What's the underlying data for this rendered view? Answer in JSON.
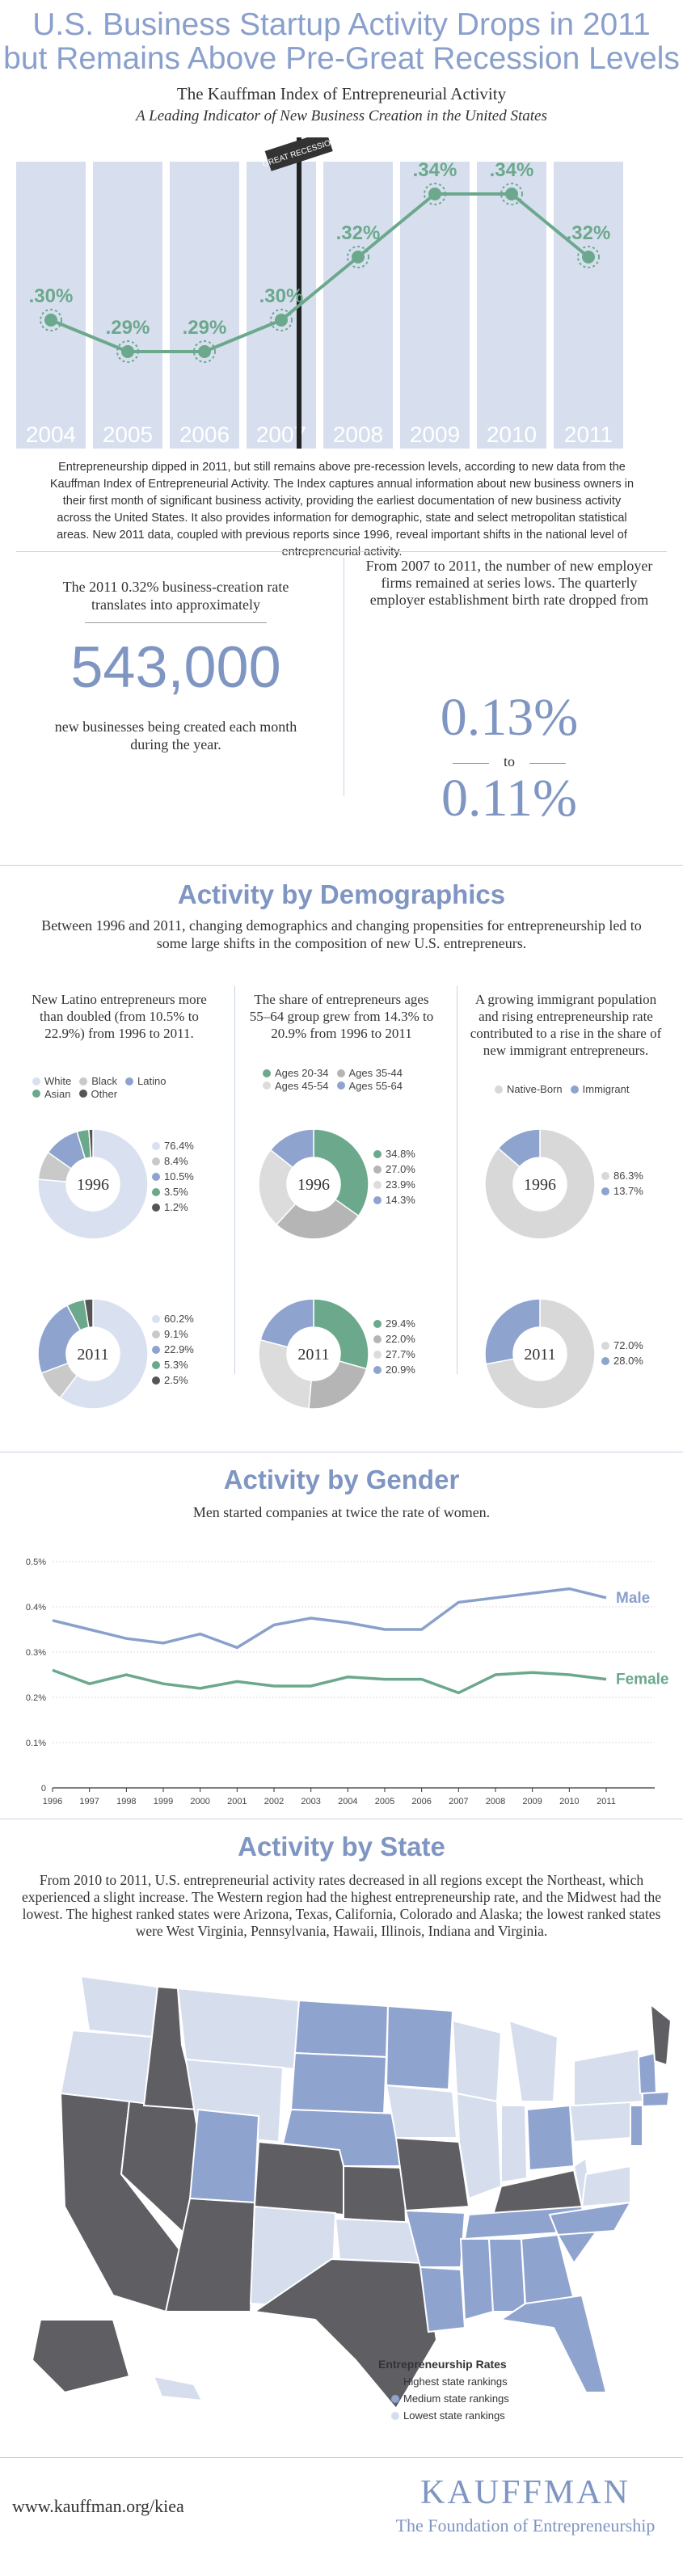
{
  "header": {
    "title_line1": "U.S. Business Startup Activity Drops in 2011",
    "title_line2": "but Remains Above Pre-Great Recession Levels",
    "index_name": "The Kauffman Index of Entrepreneurial Activity",
    "index_subtitle": "A Leading Indicator of New Business Creation in the United States",
    "recession_sign": "GREAT RECESSION"
  },
  "chart_data": [
    {
      "type": "line",
      "title": "",
      "categories": [
        "2004",
        "2005",
        "2006",
        "2007",
        "2008",
        "2009",
        "2010",
        "2011"
      ],
      "series": [
        {
          "values": [
            0.3,
            0.29,
            0.29,
            0.3,
            0.32,
            0.34,
            0.34,
            0.32
          ]
        }
      ],
      "point_labels": [
        ".30%",
        ".29%",
        ".29%",
        ".30%",
        ".32%",
        ".34%",
        ".34%",
        ".32%"
      ],
      "annotation": "GREAT RECESSION",
      "colors": {
        "bars": "#d7dfee",
        "line": "#6ba88c"
      }
    },
    {
      "type": "pie",
      "title": "1996",
      "categories": [
        "White",
        "Black",
        "Latino",
        "Asian",
        "Other"
      ],
      "values": [
        76.4,
        8.4,
        10.5,
        3.5,
        1.2
      ],
      "labels": [
        "76.4%",
        "8.4%",
        "10.5%",
        "3.5%",
        "1.2%"
      ]
    },
    {
      "type": "pie",
      "title": "2011",
      "categories": [
        "White",
        "Black",
        "Latino",
        "Asian",
        "Other"
      ],
      "values": [
        60.2,
        9.1,
        22.9,
        5.3,
        2.5
      ],
      "labels": [
        "60.2%",
        "9.1%",
        "22.9%",
        "5.3%",
        "2.5%"
      ]
    },
    {
      "type": "pie",
      "title": "1996",
      "categories": [
        "Ages 20-34",
        "Ages 35-44",
        "Ages 45-54",
        "Ages 55-64"
      ],
      "values": [
        34.8,
        27.0,
        23.9,
        14.3
      ],
      "labels": [
        "34.8%",
        "27.0%",
        "23.9%",
        "14.3%"
      ]
    },
    {
      "type": "pie",
      "title": "2011",
      "categories": [
        "Ages 20-34",
        "Ages 35-44",
        "Ages 45-54",
        "Ages 55-64"
      ],
      "values": [
        29.4,
        22.0,
        27.7,
        20.9
      ],
      "labels": [
        "29.4%",
        "22.0%",
        "27.7%",
        "20.9%"
      ]
    },
    {
      "type": "pie",
      "title": "1996",
      "categories": [
        "Native-Born",
        "Immigrant"
      ],
      "values": [
        86.3,
        13.7
      ],
      "labels": [
        "86.3%",
        "13.7%"
      ]
    },
    {
      "type": "pie",
      "title": "2011",
      "categories": [
        "Native-Born",
        "Immigrant"
      ],
      "values": [
        72.0,
        28.0
      ],
      "labels": [
        "72.0%",
        "28.0%"
      ]
    },
    {
      "type": "line",
      "title": "",
      "x": [
        "1996",
        "1997",
        "1998",
        "1999",
        "2000",
        "2001",
        "2002",
        "2003",
        "2004",
        "2005",
        "2006",
        "2007",
        "2008",
        "2009",
        "2010",
        "2011"
      ],
      "series": [
        {
          "name": "Male",
          "values": [
            0.37,
            0.35,
            0.33,
            0.32,
            0.34,
            0.31,
            0.36,
            0.375,
            0.365,
            0.35,
            0.35,
            0.41,
            0.42,
            0.43,
            0.44,
            0.42
          ]
        },
        {
          "name": "Female",
          "values": [
            0.26,
            0.23,
            0.25,
            0.23,
            0.22,
            0.235,
            0.225,
            0.225,
            0.245,
            0.24,
            0.24,
            0.21,
            0.25,
            0.255,
            0.25,
            0.24
          ]
        }
      ],
      "yticks": [
        "0",
        "0.1%",
        "0.2%",
        "0.3%",
        "0.4%",
        "0.5%"
      ],
      "ylim": [
        0,
        0.5
      ],
      "grid": true,
      "colors": {
        "Male": "#8aa0cc",
        "Female": "#6ba88c"
      }
    }
  ],
  "intro": "Entrepreneurship dipped in 2011, but still remains above pre-recession levels, according to new data from the Kauffman Index of Entrepreneurial Activity. The Index captures annual information about new business owners in their first month of significant business activity, providing the earliest documentation of new business activity across the United States. It also provides information for demographic, state and select metropolitan statistical areas. New 2011 data, coupled with previous reports since 1996, reveal important shifts in the national level of entrepreneurial activity.",
  "stats": {
    "left_lead": "The 2011 0.32% business-creation rate translates into approximately",
    "left_big": "543,000",
    "left_tail": "new businesses being created each month during the year.",
    "right_lead": "From 2007 to 2011, the number of new employer firms remained at series lows. The quarterly employer establishment birth rate dropped from",
    "right_from": "0.13%",
    "right_to_word": "to",
    "right_to": "0.11%"
  },
  "demographics": {
    "title": "Activity by Demographics",
    "text": "Between 1996 and 2011, changing demographics and changing propensities for entrepreneurship led to some large shifts in the composition of new U.S. entrepreneurs.",
    "col1_caption": "New Latino entrepreneurs more than doubled (from 10.5% to 22.9%) from 1996 to 2011.",
    "col2_caption": "The share of entrepreneurs ages 55–64 group grew from 14.3% to 20.9% from 1996 to 2011",
    "col3_caption": "A growing immigrant population and rising entrepreneurship rate contributed to a rise in the share of new immigrant entrepreneurs.",
    "race_legend": [
      "White",
      "Black",
      "Latino",
      "Asian",
      "Other"
    ],
    "age_legend": [
      "Ages 20-34",
      "Ages 35-44",
      "Ages 45-54",
      "Ages 55-64"
    ],
    "nat_legend": [
      "Native-Born",
      "Immigrant"
    ],
    "year_a": "1996",
    "year_b": "2011"
  },
  "gender": {
    "title": "Activity by Gender",
    "text": "Men started companies at twice the rate of women.",
    "male_label": "Male",
    "female_label": "Female"
  },
  "state": {
    "title": "Activity by State",
    "text": "From 2010 to 2011, U.S. entrepreneurial activity rates decreased in all regions except the Northeast, which experienced a slight increase. The Western region had the highest entrepreneurship rate, and the Midwest had the lowest. The highest ranked states were Arizona, Texas, California, Colorado and Alaska; the lowest ranked states were West Virginia, Pennsylvania, Hawaii, Illinois, Indiana and Virginia.",
    "legend_title": "Entrepreneurship Rates",
    "legend": [
      "Highest state rankings",
      "Medium state rankings",
      "Lowest state rankings"
    ],
    "colors": {
      "high": "#5f5f63",
      "medium": "#8fa3cf",
      "low": "#d6deee"
    }
  },
  "footer": {
    "url": "www.kauffman.org/kiea",
    "brand": "KAUFFMAN",
    "tagline": "The Foundation of Entrepreneurship"
  }
}
